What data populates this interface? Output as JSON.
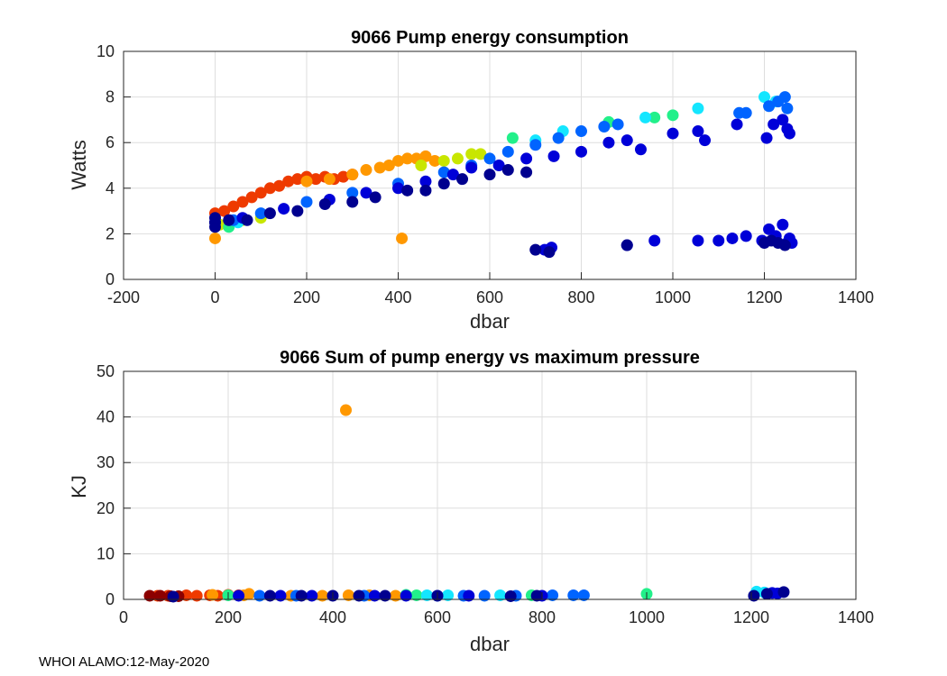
{
  "footer": "WHOI ALAMO:12-May-2020",
  "chart_data": [
    {
      "type": "scatter",
      "title": "9066 Pump energy consumption",
      "xlabel": "dbar",
      "ylabel": "Watts",
      "xlim": [
        -200,
        1400
      ],
      "ylim": [
        0,
        10
      ],
      "xticks": [
        -200,
        0,
        200,
        400,
        600,
        800,
        1000,
        1200,
        1400
      ],
      "yticks": [
        0,
        2,
        4,
        6,
        8,
        10
      ],
      "grid": true,
      "colormap": "jet (color indicates profile order)",
      "series": [
        {
          "name": "early profiles",
          "color": "#ee3a00",
          "points": [
            [
              0,
              2.9
            ],
            [
              20,
              3.0
            ],
            [
              40,
              3.2
            ],
            [
              60,
              3.4
            ],
            [
              80,
              3.6
            ],
            [
              100,
              3.8
            ],
            [
              120,
              4.0
            ],
            [
              140,
              4.1
            ],
            [
              160,
              4.3
            ],
            [
              180,
              4.4
            ],
            [
              200,
              4.5
            ],
            [
              220,
              4.4
            ],
            [
              240,
              4.5
            ],
            [
              260,
              4.4
            ],
            [
              280,
              4.5
            ],
            [
              300,
              4.6
            ]
          ]
        },
        {
          "name": "orange profiles",
          "color": "#ff9800",
          "points": [
            [
              0,
              1.8
            ],
            [
              200,
              4.3
            ],
            [
              250,
              4.4
            ],
            [
              300,
              4.6
            ],
            [
              330,
              4.8
            ],
            [
              360,
              4.9
            ],
            [
              380,
              5.0
            ],
            [
              400,
              5.2
            ],
            [
              420,
              5.3
            ],
            [
              440,
              5.3
            ],
            [
              460,
              5.4
            ],
            [
              480,
              5.2
            ],
            [
              408,
              1.8
            ]
          ]
        },
        {
          "name": "yellow-green profiles",
          "color": "#c8e600",
          "points": [
            [
              10,
              2.4
            ],
            [
              60,
              2.6
            ],
            [
              100,
              2.7
            ],
            [
              450,
              5.0
            ],
            [
              500,
              5.2
            ],
            [
              530,
              5.3
            ],
            [
              560,
              5.5
            ],
            [
              580,
              5.5
            ]
          ]
        },
        {
          "name": "green profiles",
          "color": "#22f08a",
          "points": [
            [
              30,
              2.3
            ],
            [
              650,
              6.2
            ],
            [
              860,
              6.9
            ],
            [
              960,
              7.1
            ],
            [
              1000,
              7.2
            ]
          ]
        },
        {
          "name": "cyan profiles",
          "color": "#14e6ff",
          "points": [
            [
              50,
              2.5
            ],
            [
              700,
              6.1
            ],
            [
              760,
              6.5
            ],
            [
              940,
              7.1
            ],
            [
              1055,
              7.5
            ],
            [
              1200,
              8.0
            ],
            [
              1225,
              7.8
            ]
          ]
        },
        {
          "name": "blue profiles",
          "color": "#0064ff",
          "points": [
            [
              40,
              2.6
            ],
            [
              100,
              2.9
            ],
            [
              200,
              3.4
            ],
            [
              300,
              3.8
            ],
            [
              400,
              4.2
            ],
            [
              500,
              4.7
            ],
            [
              560,
              5.0
            ],
            [
              600,
              5.3
            ],
            [
              640,
              5.6
            ],
            [
              700,
              5.9
            ],
            [
              750,
              6.2
            ],
            [
              800,
              6.5
            ],
            [
              850,
              6.7
            ],
            [
              880,
              6.8
            ],
            [
              1145,
              7.3
            ],
            [
              1160,
              7.3
            ],
            [
              1210,
              7.6
            ],
            [
              1230,
              7.8
            ],
            [
              1245,
              8.0
            ],
            [
              1250,
              7.5
            ]
          ]
        },
        {
          "name": "dark blue profiles",
          "color": "#0000d8",
          "points": [
            [
              0,
              2.5
            ],
            [
              60,
              2.7
            ],
            [
              150,
              3.1
            ],
            [
              250,
              3.5
            ],
            [
              330,
              3.8
            ],
            [
              400,
              4.0
            ],
            [
              460,
              4.3
            ],
            [
              520,
              4.6
            ],
            [
              560,
              4.9
            ],
            [
              620,
              5.0
            ],
            [
              680,
              5.3
            ],
            [
              740,
              5.4
            ],
            [
              800,
              5.6
            ],
            [
              860,
              6.0
            ],
            [
              900,
              6.1
            ],
            [
              930,
              5.7
            ],
            [
              1000,
              6.4
            ],
            [
              1055,
              6.5
            ],
            [
              1070,
              6.1
            ],
            [
              1140,
              6.8
            ],
            [
              1205,
              6.2
            ],
            [
              1220,
              6.8
            ],
            [
              1240,
              7.0
            ],
            [
              1250,
              6.6
            ],
            [
              1255,
              6.4
            ],
            [
              720,
              1.3
            ],
            [
              735,
              1.4
            ],
            [
              900,
              1.5
            ],
            [
              960,
              1.7
            ],
            [
              1055,
              1.7
            ],
            [
              1100,
              1.7
            ],
            [
              1130,
              1.8
            ],
            [
              1160,
              1.9
            ],
            [
              1195,
              1.7
            ],
            [
              1210,
              2.2
            ],
            [
              1225,
              1.9
            ],
            [
              1240,
              2.4
            ],
            [
              1250,
              1.6
            ],
            [
              1255,
              1.8
            ],
            [
              1260,
              1.6
            ]
          ]
        },
        {
          "name": "latest profiles",
          "color": "#00008f",
          "points": [
            [
              0,
              2.3
            ],
            [
              0,
              2.5
            ],
            [
              0,
              2.7
            ],
            [
              30,
              2.6
            ],
            [
              70,
              2.6
            ],
            [
              120,
              2.9
            ],
            [
              180,
              3.0
            ],
            [
              240,
              3.3
            ],
            [
              300,
              3.4
            ],
            [
              350,
              3.6
            ],
            [
              420,
              3.9
            ],
            [
              460,
              3.9
            ],
            [
              500,
              4.2
            ],
            [
              540,
              4.4
            ],
            [
              600,
              4.6
            ],
            [
              640,
              4.8
            ],
            [
              680,
              4.7
            ],
            [
              700,
              1.3
            ],
            [
              730,
              1.2
            ],
            [
              900,
              1.5
            ],
            [
              1200,
              1.6
            ],
            [
              1215,
              1.7
            ],
            [
              1230,
              1.6
            ],
            [
              1245,
              1.5
            ]
          ]
        }
      ]
    },
    {
      "type": "scatter",
      "title": "9066 Sum of pump energy vs maximum pressure",
      "xlabel": "dbar",
      "ylabel": "KJ",
      "xlim": [
        0,
        1400
      ],
      "ylim": [
        0,
        50
      ],
      "xticks": [
        0,
        200,
        400,
        600,
        800,
        1000,
        1200,
        1400
      ],
      "yticks": [
        0,
        10,
        20,
        30,
        40,
        50
      ],
      "grid": true,
      "series": [
        {
          "name": "early profiles",
          "color": "#ee3a00",
          "points": [
            [
              65,
              0.8
            ],
            [
              85,
              0.8
            ],
            [
              120,
              0.9
            ],
            [
              140,
              0.8
            ],
            [
              165,
              0.9
            ],
            [
              180,
              0.8
            ],
            [
              200,
              1.0
            ],
            [
              220,
              0.9
            ]
          ]
        },
        {
          "name": "dark red profiles",
          "color": "#8c0000",
          "points": [
            [
              50,
              0.8
            ],
            [
              70,
              0.8
            ],
            [
              90,
              0.7
            ],
            [
              105,
              0.7
            ]
          ]
        },
        {
          "name": "orange profiles",
          "color": "#ff9800",
          "points": [
            [
              170,
              1.0
            ],
            [
              230,
              0.9
            ],
            [
              240,
              1.2
            ],
            [
              320,
              0.8
            ],
            [
              380,
              0.8
            ],
            [
              430,
              0.9
            ],
            [
              470,
              0.9
            ],
            [
              520,
              0.8
            ],
            [
              425,
              41.5
            ]
          ]
        },
        {
          "name": "green profiles",
          "color": "#22f08a",
          "points": [
            [
              200,
              0.9
            ],
            [
              540,
              1.0
            ],
            [
              560,
              0.9
            ],
            [
              780,
              0.9
            ],
            [
              1000,
              1.2
            ]
          ]
        },
        {
          "name": "cyan profiles",
          "color": "#14e6ff",
          "points": [
            [
              580,
              0.9
            ],
            [
              620,
              0.9
            ],
            [
              720,
              0.9
            ],
            [
              1210,
              1.7
            ],
            [
              1225,
              1.5
            ]
          ]
        },
        {
          "name": "blue profiles",
          "color": "#0064ff",
          "points": [
            [
              260,
              0.8
            ],
            [
              330,
              0.8
            ],
            [
              460,
              0.8
            ],
            [
              600,
              0.8
            ],
            [
              650,
              0.8
            ],
            [
              690,
              0.8
            ],
            [
              750,
              0.8
            ],
            [
              820,
              0.9
            ],
            [
              860,
              0.9
            ],
            [
              880,
              0.9
            ],
            [
              1230,
              1.2
            ]
          ]
        },
        {
          "name": "dark blue profiles",
          "color": "#0000d8",
          "points": [
            [
              220,
              0.8
            ],
            [
              300,
              0.8
            ],
            [
              360,
              0.8
            ],
            [
              480,
              0.8
            ],
            [
              540,
              0.8
            ],
            [
              660,
              0.8
            ],
            [
              800,
              0.8
            ],
            [
              1240,
              1.4
            ],
            [
              1250,
              1.3
            ]
          ]
        },
        {
          "name": "latest profiles",
          "color": "#00008f",
          "points": [
            [
              95,
              0.6
            ],
            [
              280,
              0.8
            ],
            [
              340,
              0.8
            ],
            [
              400,
              0.8
            ],
            [
              450,
              0.8
            ],
            [
              500,
              0.8
            ],
            [
              600,
              0.8
            ],
            [
              740,
              0.7
            ],
            [
              790,
              0.8
            ],
            [
              1205,
              0.8
            ],
            [
              1230,
              1.2
            ],
            [
              1262,
              1.6
            ]
          ]
        }
      ]
    }
  ]
}
